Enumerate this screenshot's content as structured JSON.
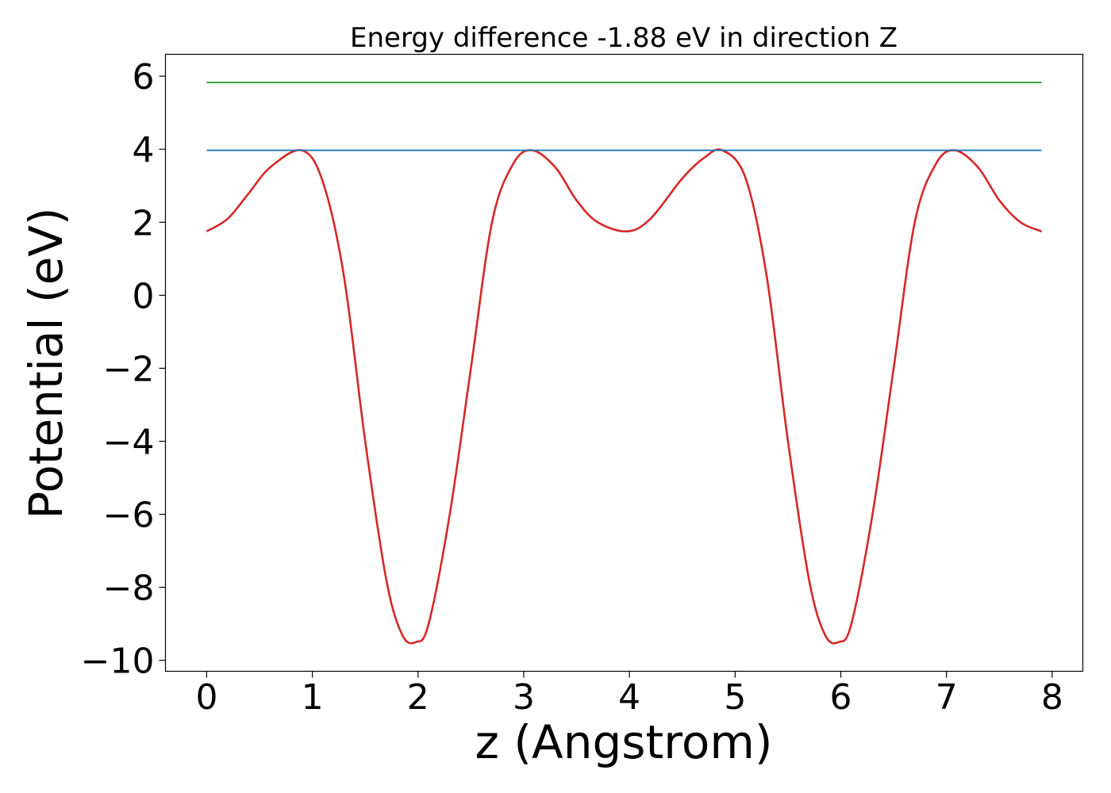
{
  "chart_data": {
    "type": "line",
    "title": "Energy difference -1.88 eV in direction Z",
    "xlabel": "z (Angstrom)",
    "ylabel": "Potential (eV)",
    "xlim": [
      -0.39,
      8.29
    ],
    "ylim": [
      -10.3,
      6.6
    ],
    "xticks": [
      0,
      1,
      2,
      3,
      4,
      5,
      6,
      7,
      8
    ],
    "xtick_labels": [
      "0",
      "1",
      "2",
      "3",
      "4",
      "5",
      "6",
      "7",
      "8"
    ],
    "yticks": [
      -10,
      -8,
      -6,
      -4,
      -2,
      0,
      2,
      4,
      6
    ],
    "ytick_labels": [
      "−10",
      "−8",
      "−6",
      "−4",
      "−2",
      "0",
      "2",
      "4",
      "6"
    ],
    "grid": false,
    "series": [
      {
        "color": "#d62728",
        "x": [
          0.0,
          0.2,
          0.4,
          0.6,
          0.9,
          1.1,
          1.3,
          1.5,
          1.7,
          1.85,
          1.98,
          2.1,
          2.3,
          2.5,
          2.7,
          2.9,
          3.08,
          3.3,
          3.5,
          3.7,
          3.98,
          4.2,
          4.5,
          4.7,
          4.88,
          5.1,
          5.3,
          5.5,
          5.7,
          5.85,
          5.98,
          6.1,
          6.3,
          6.5,
          6.7,
          6.9,
          7.08,
          7.3,
          7.5,
          7.7,
          7.9
        ],
        "y": [
          1.75,
          2.1,
          2.8,
          3.5,
          3.97,
          3.1,
          0.5,
          -4.0,
          -7.8,
          -9.3,
          -9.5,
          -9.0,
          -6.0,
          -2.0,
          2.0,
          3.6,
          3.97,
          3.5,
          2.6,
          2.0,
          1.75,
          2.1,
          3.2,
          3.75,
          3.97,
          3.2,
          0.5,
          -4.0,
          -7.8,
          -9.3,
          -9.5,
          -9.0,
          -6.0,
          -2.0,
          2.0,
          3.6,
          3.97,
          3.5,
          2.6,
          2.0,
          1.75
        ]
      },
      {
        "color": "#1f77b4",
        "x": [
          0.0,
          7.9
        ],
        "y": [
          3.97,
          3.97
        ]
      },
      {
        "color": "#2ca02c",
        "x": [
          0.0,
          7.9
        ],
        "y": [
          5.83,
          5.83
        ]
      }
    ]
  }
}
